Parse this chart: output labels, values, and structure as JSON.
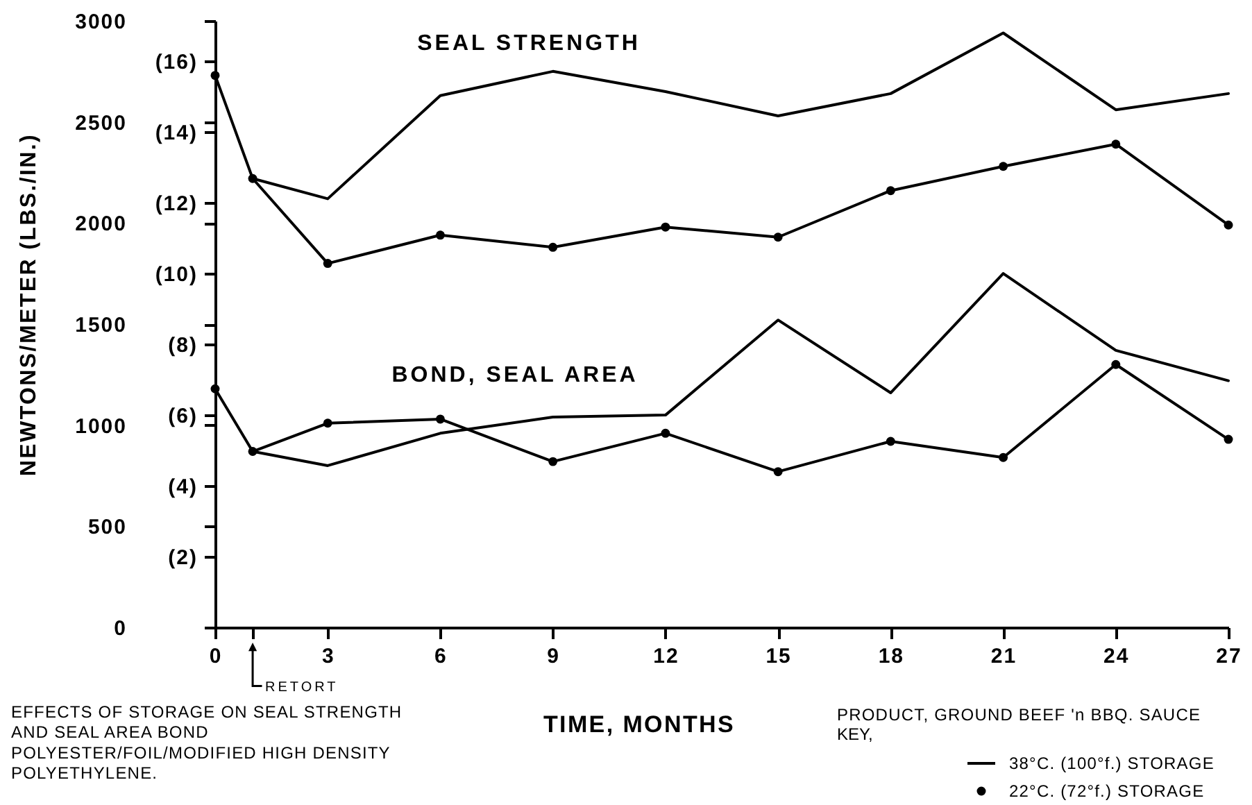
{
  "chart_data": {
    "type": "line",
    "xlabel": "TIME, MONTHS",
    "ylabel": "NEWTONS/METER (LBS./IN.)",
    "legend_title": "KEY,",
    "legend": "bottom right",
    "x": [
      0,
      1,
      3,
      6,
      9,
      12,
      15,
      18,
      21,
      24,
      27
    ],
    "xlim": [
      0,
      27
    ],
    "xticks": [
      0,
      {
        "value": 1,
        "label": null
      },
      3,
      6,
      9,
      12,
      15,
      18,
      21,
      24,
      27
    ],
    "ylim": [
      0,
      3000
    ],
    "yticks": [
      0,
      500,
      1000,
      1500,
      2000,
      2500,
      3000
    ],
    "y2lim": [
      0,
      17.13
    ],
    "y2ticks": [
      {
        "value": 2,
        "label": "(2)"
      },
      {
        "value": 4,
        "label": "(4)"
      },
      {
        "value": 6,
        "label": "(6)"
      },
      {
        "value": 8,
        "label": "(8)"
      },
      {
        "value": 10,
        "label": "(10)"
      },
      {
        "value": 12,
        "label": "(12)"
      },
      {
        "value": 14,
        "label": "(14)"
      },
      {
        "value": 16,
        "label": "(16)"
      }
    ],
    "series": [
      {
        "name": "38°C. (100°f.) STORAGE",
        "color": "#000000",
        "marker": "none",
        "values": [
          null,
          2220,
          2120,
          2630,
          2750,
          2650,
          2530,
          2640,
          2940,
          2560,
          2640
        ]
      },
      {
        "name": "22°C. (72°f.) STORAGE",
        "color": "#000000",
        "marker": "circle",
        "values": [
          2730,
          2220,
          1800,
          1940,
          1880,
          1980,
          1930,
          2160,
          2280,
          2390,
          1990
        ]
      },
      {
        "color": "#000000",
        "marker": "none",
        "values": [
          null,
          870,
          800,
          960,
          1040,
          1050,
          1520,
          1160,
          1750,
          1370,
          1220
        ]
      },
      {
        "color": "#000000",
        "marker": "circle",
        "values": [
          1180,
          870,
          1010,
          1030,
          820,
          960,
          770,
          920,
          840,
          1300,
          930
        ]
      }
    ],
    "annotations": [
      "SEAL STRENGTH",
      "BOND, SEAL AREA",
      "RETORT",
      "EFFECTS OF STORAGE ON SEAL STRENGTH AND SEAL AREA BOND POLYESTER/FOIL/MODIFIED HIGH DENSITY POLYETHYLENE.",
      "PRODUCT, GROUND BEEF 'n BBQ. SAUCE"
    ]
  }
}
